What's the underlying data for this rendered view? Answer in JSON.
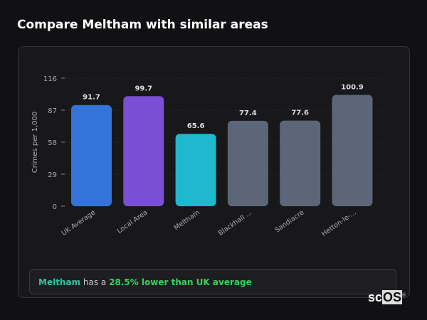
{
  "title": "Compare Meltham with similar areas",
  "chart_data": {
    "type": "bar",
    "categories": [
      "UK Average",
      "Local Area",
      "Meltham",
      "Blackhall ...",
      "Sandiacre",
      "Hetton-le-..."
    ],
    "values": [
      91.7,
      99.7,
      65.6,
      77.4,
      77.6,
      100.9
    ],
    "value_labels": [
      "91.7",
      "99.7",
      "65.6",
      "77.4",
      "77.6",
      "100.9"
    ],
    "colors": [
      "#3474d8",
      "#7b4fd4",
      "#1fb8cf",
      "#5b6678",
      "#5b6678",
      "#5b6678"
    ],
    "ylabel": "Crimes per 1,000",
    "xlabel": "",
    "yticks": [
      0,
      29,
      58,
      87,
      116
    ],
    "ylim": [
      0,
      116
    ],
    "grid": true
  },
  "summary": {
    "area": "Meltham",
    "middle": " has a ",
    "comparison": "28.5% lower than UK average",
    "area_color": "#2ec4a6",
    "comparison_color": "#3ccf5a"
  },
  "logo": {
    "left": "sc",
    "right": "OS",
    "mark": "®"
  }
}
